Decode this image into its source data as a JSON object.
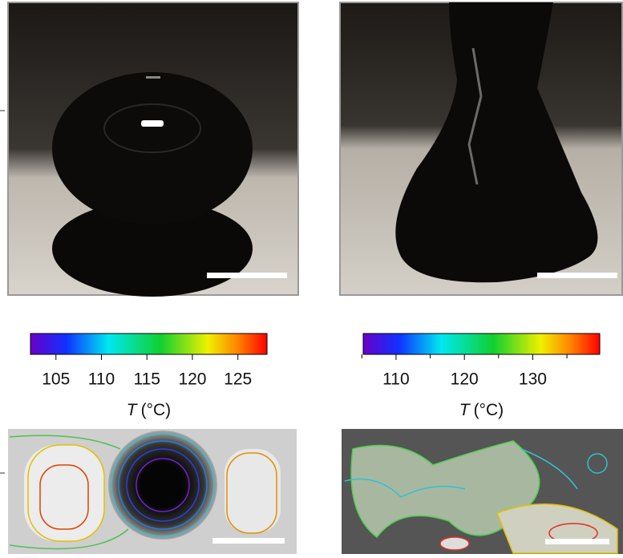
{
  "colorbars": [
    {
      "lim": [
        102.2,
        128.2
      ],
      "ticks": [
        105,
        110,
        115,
        120,
        125
      ],
      "label_symbol": "T",
      "label_unit": "(°C)"
    },
    {
      "lim": [
        105.2,
        139.8
      ],
      "ticks": [
        110,
        120,
        130
      ],
      "minor_ticks": [
        105,
        115,
        125,
        135
      ],
      "label_symbol": "T",
      "label_unit": "(°C)"
    }
  ]
}
